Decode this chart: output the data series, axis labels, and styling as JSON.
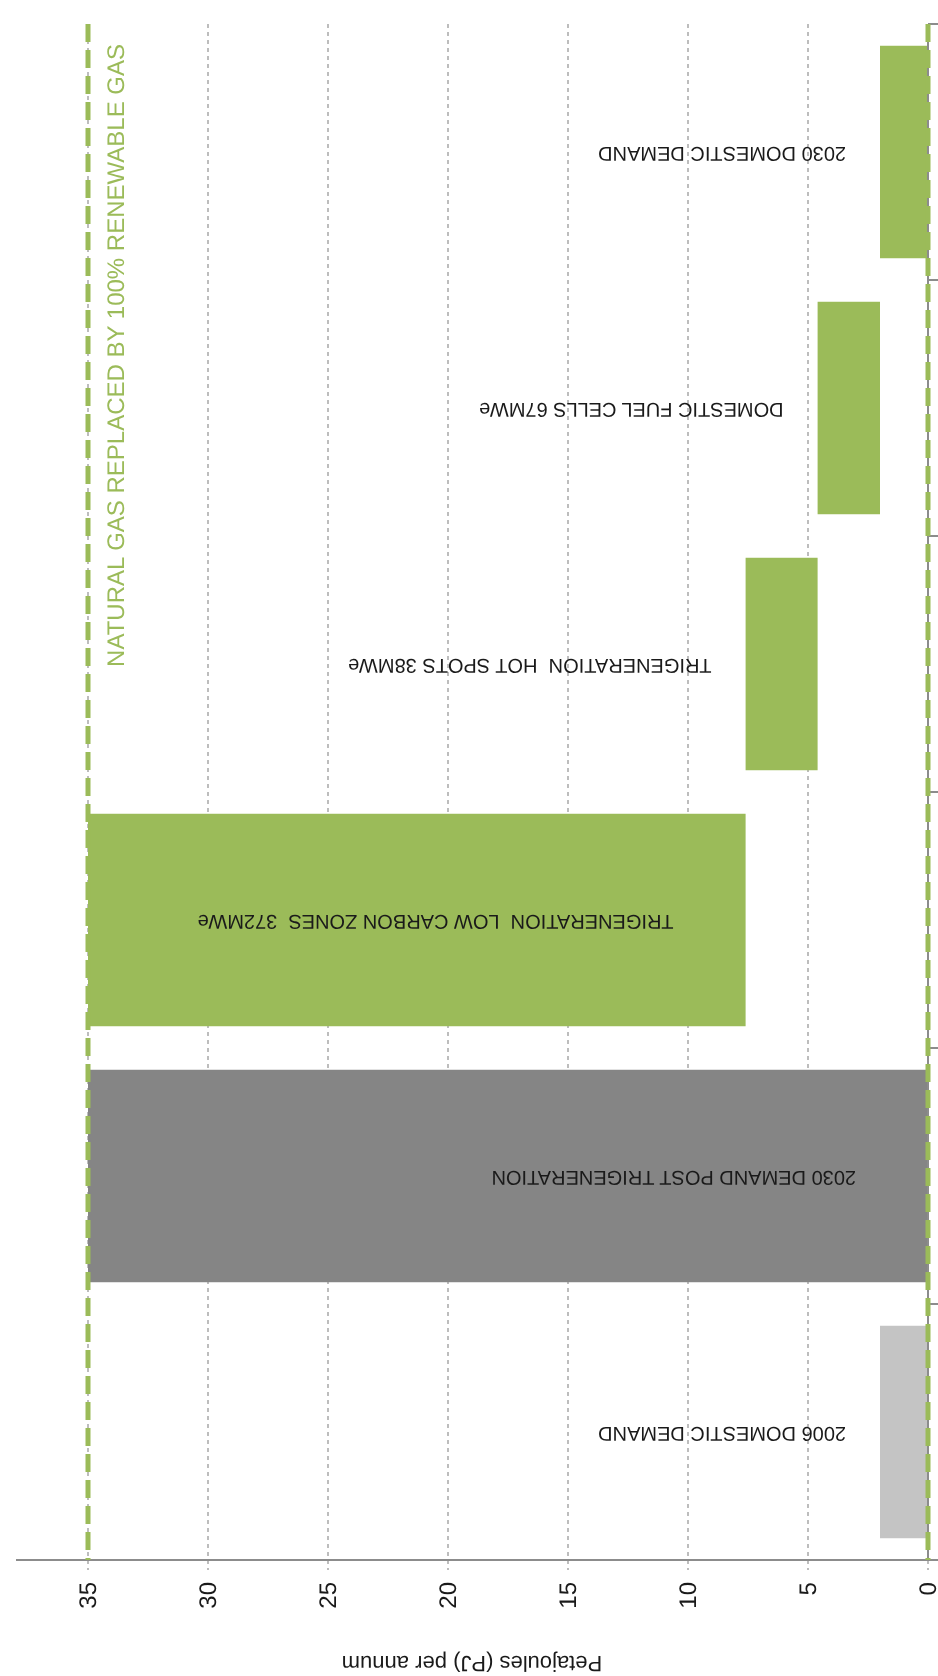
{
  "chart_data": {
    "type": "bar",
    "orientation": "horizontal",
    "xlabel": "Petajoules (PJ) per annum",
    "categories": [
      "2030 DOMESTIC DEMAND",
      "DOMESTIC FUEL CELLS 67MWe",
      "TRIGENERATION  HOT SPOTS 38MWe",
      "TRIGENERATION  LOW CARBON ZONES  372MWe",
      "2030 DEMAND POST TRIGENERATION",
      "2006 DOMESTIC DEMAND"
    ],
    "values": [
      2.0,
      2.6,
      3.0,
      27.4,
      35,
      2.0
    ],
    "base": [
      0,
      2.0,
      4.6,
      7.6,
      0,
      0
    ],
    "colors": [
      "#9bbb59",
      "#9bbb59",
      "#9bbb59",
      "#9bbb59",
      "#858585",
      "#c4c4c4"
    ],
    "xlim": [
      38,
      0
    ],
    "xticks": [
      35,
      30,
      25,
      20,
      15,
      10,
      5,
      0
    ],
    "grid": "x",
    "ref_lines": [
      {
        "axis": "x",
        "value": 35,
        "label": "NATURAL GAS REPLACED BY 100% RENEWABLE GAS",
        "color": "#9bbb59",
        "line_style": "dashed"
      },
      {
        "axis": "x",
        "value": 0,
        "color": "#9bbb59",
        "line_style": "dashed"
      }
    ]
  }
}
